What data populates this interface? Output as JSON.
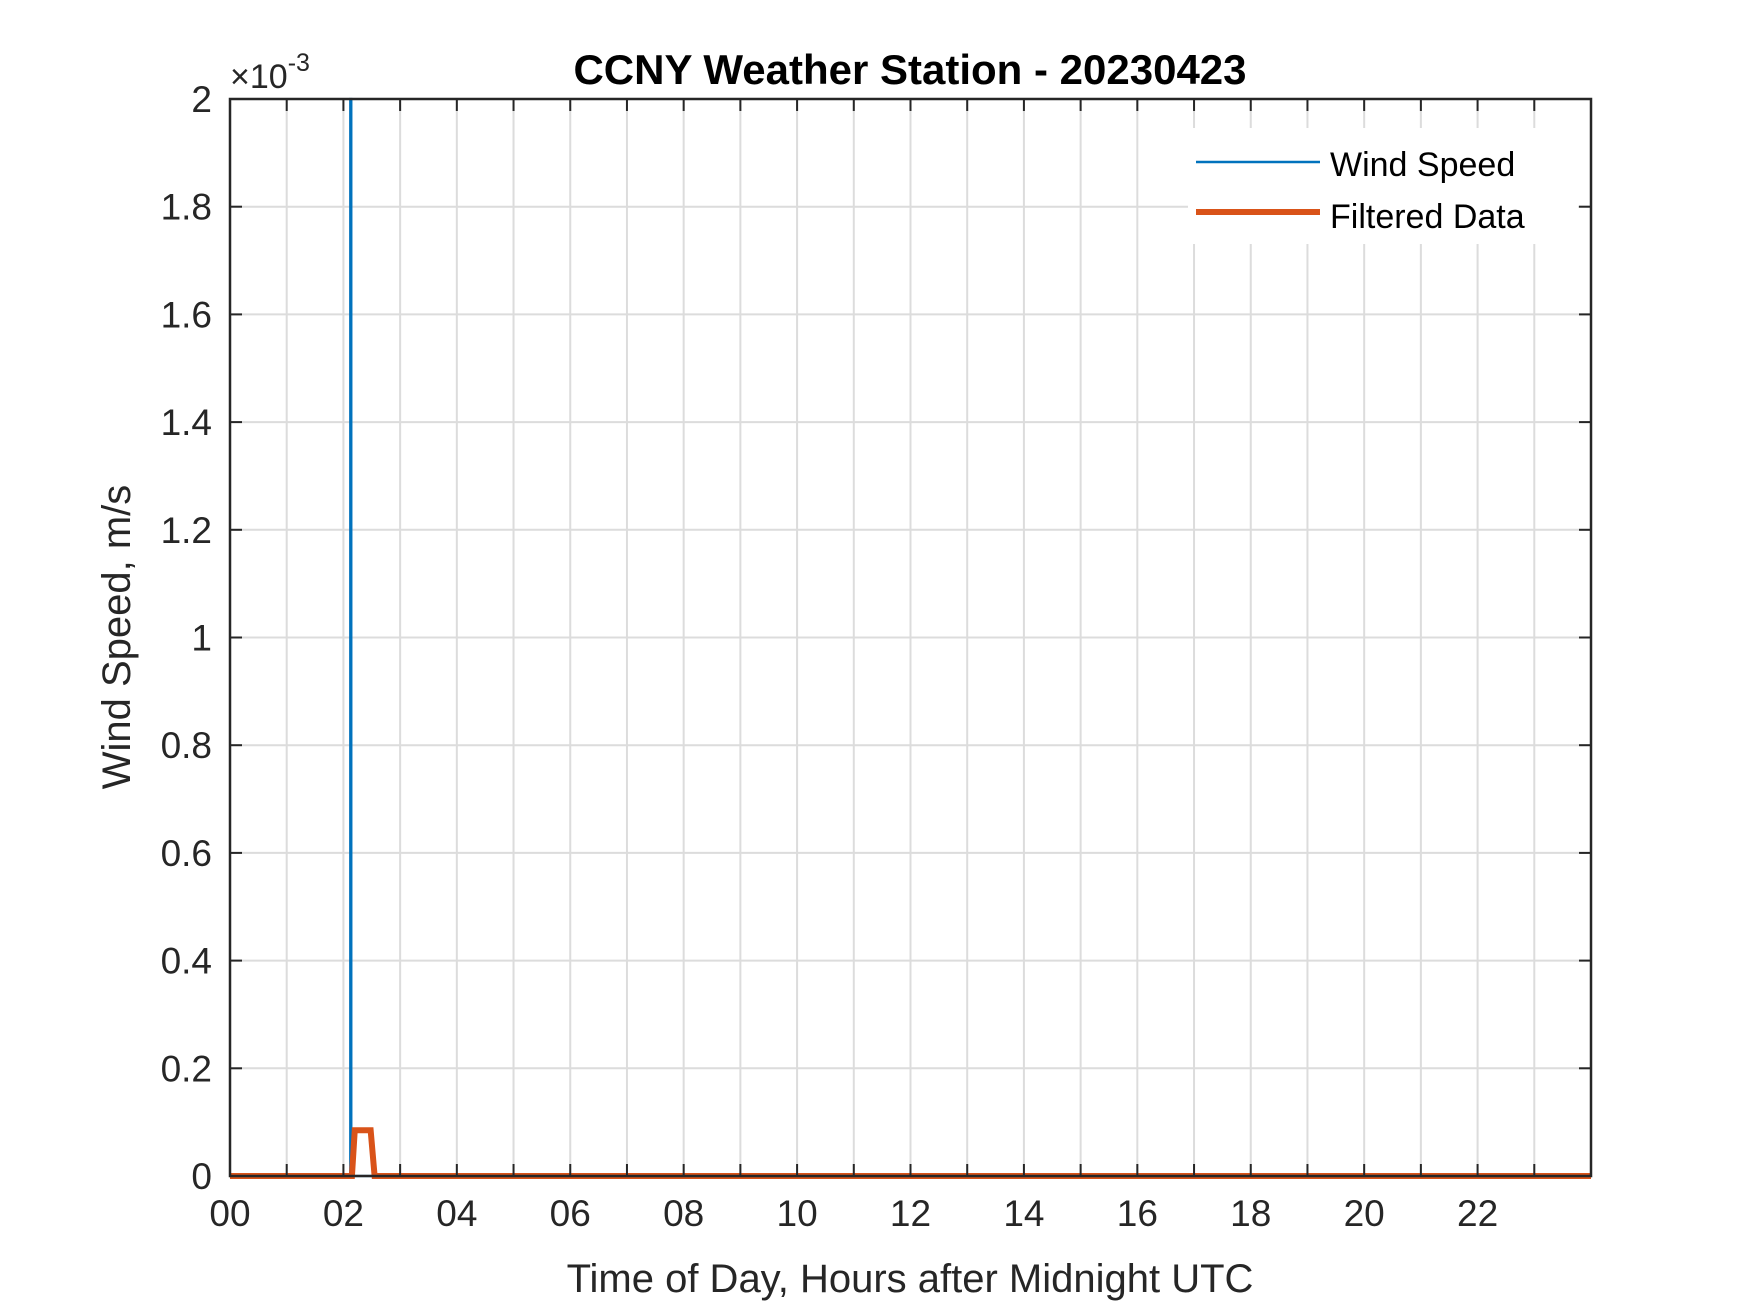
{
  "chart_data": {
    "type": "line",
    "title": "CCNY Weather Station - 20230423",
    "xlabel": "Time of Day, Hours after Midnight UTC",
    "ylabel": "Wind Speed, m/s",
    "xlim": [
      0,
      24
    ],
    "ylim": [
      0,
      0.002
    ],
    "x_ticks": [
      0,
      2,
      4,
      6,
      8,
      10,
      12,
      14,
      16,
      18,
      20,
      22
    ],
    "x_tick_labels": [
      "00",
      "02",
      "04",
      "06",
      "08",
      "10",
      "12",
      "14",
      "16",
      "18",
      "20",
      "22"
    ],
    "y_ticks": [
      0,
      0.2,
      0.4,
      0.6,
      0.8,
      1,
      1.2,
      1.4,
      1.6,
      1.8,
      2
    ],
    "y_tick_labels": [
      "0",
      "0.2",
      "0.4",
      "0.6",
      "0.8",
      "1",
      "1.2",
      "1.4",
      "1.6",
      "1.8",
      "2"
    ],
    "y_multiplier": {
      "base": "×10",
      "exponent": "-3"
    },
    "grid": true,
    "legend_position": "top-right",
    "series": [
      {
        "name": "Wind Speed",
        "color": "#0072BD",
        "x": [
          0,
          2.12,
          2.12,
          2.14,
          2.14,
          2.55,
          24
        ],
        "y": [
          0,
          0,
          0.002,
          0.002,
          0,
          0,
          0
        ]
      },
      {
        "name": "Filtered Data",
        "color": "#D95319",
        "x": [
          0,
          2.15,
          2.2,
          2.48,
          2.55,
          24
        ],
        "y": [
          0,
          0,
          8.5e-05,
          8.5e-05,
          0,
          0
        ]
      }
    ]
  }
}
